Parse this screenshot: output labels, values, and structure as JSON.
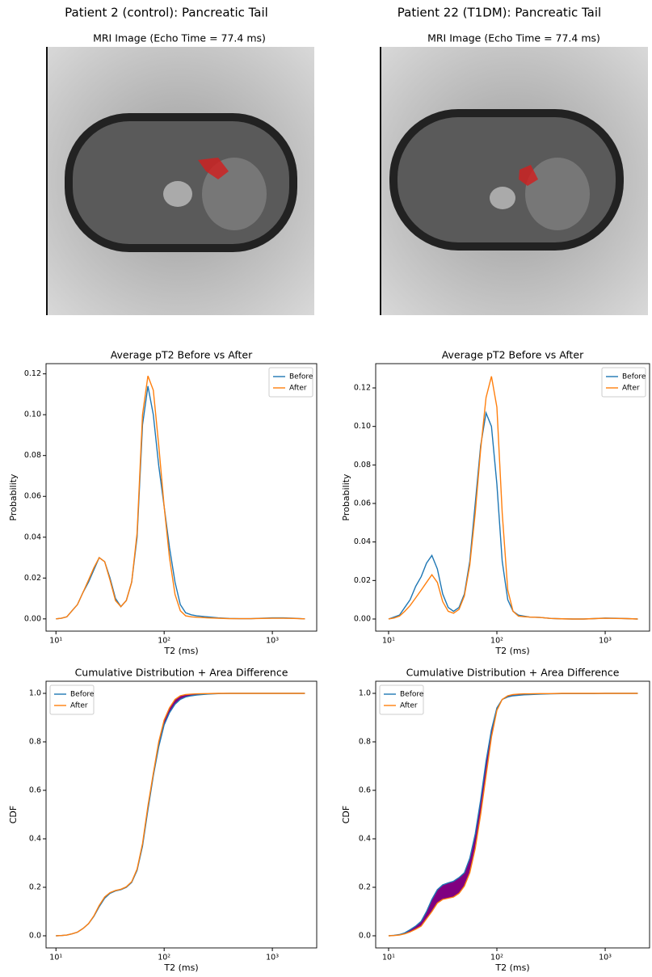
{
  "columns": [
    {
      "title": "Patient 2 (control): Pancreatic Tail",
      "image_title": "MRI Image (Echo Time = 77.4 ms)"
    },
    {
      "title": "Patient 22 (T1DM): Pancreatic Tail",
      "image_title": "MRI Image (Echo Time = 77.4 ms)"
    }
  ],
  "chart_data": [
    {
      "type": "line",
      "title": "Average pT2 Before vs After",
      "xlabel": "T2 (ms)",
      "ylabel": "Probability",
      "xscale": "log",
      "legend": "upper right",
      "x": [
        10,
        11.2,
        12.6,
        14.1,
        15.8,
        17.8,
        20,
        22.4,
        25.1,
        28.2,
        31.6,
        35.5,
        39.8,
        44.7,
        50.1,
        56.2,
        63.1,
        70.8,
        79.4,
        89.1,
        100,
        112,
        126,
        141,
        158,
        178,
        200,
        251,
        316,
        398,
        501,
        631,
        794,
        1000,
        1259,
        1585,
        2000
      ],
      "series": [
        {
          "name": "Before",
          "color": "#1f77b4",
          "values": [
            0,
            0.0003,
            0.001,
            0.004,
            0.007,
            0.013,
            0.018,
            0.024,
            0.03,
            0.028,
            0.02,
            0.01,
            0.006,
            0.009,
            0.018,
            0.04,
            0.095,
            0.114,
            0.1,
            0.075,
            0.055,
            0.035,
            0.018,
            0.007,
            0.003,
            0.002,
            0.0015,
            0.001,
            0.0005,
            0.0002,
            0.0001,
            0.0001,
            0.0003,
            0.0005,
            0.0005,
            0.0003,
            0
          ]
        },
        {
          "name": "After",
          "color": "#ff7f0e",
          "values": [
            0,
            0.0003,
            0.001,
            0.004,
            0.007,
            0.013,
            0.019,
            0.025,
            0.03,
            0.028,
            0.019,
            0.009,
            0.006,
            0.009,
            0.018,
            0.042,
            0.1,
            0.119,
            0.112,
            0.085,
            0.055,
            0.03,
            0.012,
            0.004,
            0.0015,
            0.001,
            0.0008,
            0.0005,
            0.0003,
            0.0001,
            0.0001,
            0.0001,
            0.0002,
            0.0003,
            0.0003,
            0.0002,
            0
          ]
        }
      ],
      "xlim": [
        8.1,
        2570
      ],
      "xticks": [
        {
          "value": 10,
          "label": "10¹"
        },
        {
          "value": 100,
          "label": "10²"
        },
        {
          "value": 1000,
          "label": "10³"
        }
      ],
      "ylim": [
        -0.006,
        0.125
      ],
      "yticks": [
        {
          "value": 0,
          "label": "0.00"
        },
        {
          "value": 0.02,
          "label": "0.02"
        },
        {
          "value": 0.04,
          "label": "0.04"
        },
        {
          "value": 0.06,
          "label": "0.06"
        },
        {
          "value": 0.08,
          "label": "0.08"
        },
        {
          "value": 0.1,
          "label": "0.10"
        },
        {
          "value": 0.12,
          "label": "0.12"
        }
      ]
    },
    {
      "type": "line",
      "title": "Average pT2 Before vs After",
      "xlabel": "T2 (ms)",
      "ylabel": "Probability",
      "xscale": "log",
      "legend": "upper right",
      "x": [
        10,
        11.2,
        12.6,
        14.1,
        15.8,
        17.8,
        20,
        22.4,
        25.1,
        28.2,
        31.6,
        35.5,
        39.8,
        44.7,
        50.1,
        56.2,
        63.1,
        70.8,
        79.4,
        89.1,
        100,
        112,
        126,
        141,
        158,
        178,
        200,
        251,
        316,
        398,
        501,
        631,
        794,
        1000,
        1259,
        1585,
        2000
      ],
      "series": [
        {
          "name": "Before",
          "color": "#1f77b4",
          "values": [
            0,
            0.001,
            0.002,
            0.006,
            0.01,
            0.017,
            0.022,
            0.029,
            0.033,
            0.026,
            0.013,
            0.006,
            0.004,
            0.006,
            0.013,
            0.03,
            0.06,
            0.09,
            0.107,
            0.1,
            0.07,
            0.03,
            0.01,
            0.004,
            0.002,
            0.0015,
            0.001,
            0.0008,
            0.0003,
            0.0001,
            0,
            0,
            0.0002,
            0.0005,
            0.0004,
            0.0002,
            0
          ]
        },
        {
          "name": "After",
          "color": "#ff7f0e",
          "values": [
            0,
            0.0005,
            0.0015,
            0.004,
            0.007,
            0.011,
            0.015,
            0.019,
            0.023,
            0.019,
            0.009,
            0.004,
            0.003,
            0.005,
            0.012,
            0.028,
            0.055,
            0.088,
            0.115,
            0.126,
            0.11,
            0.055,
            0.015,
            0.004,
            0.0015,
            0.0012,
            0.001,
            0.0008,
            0.0003,
            0.0001,
            0,
            0,
            0.0002,
            0.0004,
            0.0003,
            0.0002,
            0
          ]
        }
      ],
      "xlim": [
        7.6,
        2570
      ],
      "xticks": [
        {
          "value": 10,
          "label": "10¹"
        },
        {
          "value": 100,
          "label": "10²"
        },
        {
          "value": 1000,
          "label": "10³"
        }
      ],
      "ylim": [
        -0.0063,
        0.1326
      ],
      "yticks": [
        {
          "value": 0,
          "label": "0.00"
        },
        {
          "value": 0.02,
          "label": "0.02"
        },
        {
          "value": 0.04,
          "label": "0.04"
        },
        {
          "value": 0.06,
          "label": "0.06"
        },
        {
          "value": 0.08,
          "label": "0.08"
        },
        {
          "value": 0.1,
          "label": "0.10"
        },
        {
          "value": 0.12,
          "label": "0.12"
        }
      ]
    },
    {
      "type": "cdf",
      "title": "Cumulative Distribution + Area Difference",
      "xlabel": "T2 (ms)",
      "ylabel": "CDF",
      "xscale": "log",
      "legend": "upper left",
      "fill_color": "#800080",
      "x": [
        10,
        11.2,
        12.6,
        14.1,
        15.8,
        17.8,
        20,
        22.4,
        25.1,
        28.2,
        31.6,
        35.5,
        39.8,
        44.7,
        50.1,
        56.2,
        63.1,
        70.8,
        79.4,
        89.1,
        100,
        112,
        126,
        141,
        158,
        178,
        200,
        251,
        316,
        398,
        501,
        631,
        794,
        1000,
        1259,
        1585,
        2000
      ],
      "series": [
        {
          "name": "Before",
          "color": "#1f77b4",
          "values": [
            0,
            0.001,
            0.003,
            0.008,
            0.015,
            0.03,
            0.05,
            0.08,
            0.12,
            0.155,
            0.175,
            0.185,
            0.19,
            0.2,
            0.22,
            0.27,
            0.37,
            0.52,
            0.66,
            0.78,
            0.87,
            0.92,
            0.955,
            0.975,
            0.985,
            0.99,
            0.993,
            0.997,
            0.999,
            1,
            1,
            1,
            1,
            1,
            1,
            1,
            1
          ]
        },
        {
          "name": "After",
          "color": "#ff7f0e",
          "values": [
            0,
            0.001,
            0.003,
            0.008,
            0.015,
            0.03,
            0.05,
            0.082,
            0.125,
            0.16,
            0.178,
            0.187,
            0.192,
            0.202,
            0.223,
            0.275,
            0.38,
            0.535,
            0.67,
            0.8,
            0.89,
            0.94,
            0.975,
            0.99,
            0.995,
            0.997,
            0.998,
            0.999,
            1,
            1,
            1,
            1,
            1,
            1,
            1,
            1,
            1
          ]
        }
      ],
      "xlim": [
        8.1,
        2570
      ],
      "xticks": [
        {
          "value": 10,
          "label": "10¹"
        },
        {
          "value": 100,
          "label": "10²"
        },
        {
          "value": 1000,
          "label": "10³"
        }
      ],
      "ylim": [
        -0.05,
        1.05
      ],
      "yticks": [
        {
          "value": 0,
          "label": "0.0"
        },
        {
          "value": 0.2,
          "label": "0.2"
        },
        {
          "value": 0.4,
          "label": "0.4"
        },
        {
          "value": 0.6,
          "label": "0.6"
        },
        {
          "value": 0.8,
          "label": "0.8"
        },
        {
          "value": 1,
          "label": "1.0"
        }
      ]
    },
    {
      "type": "cdf",
      "title": "Cumulative Distribution + Area Difference",
      "xlabel": "T2 (ms)",
      "ylabel": "CDF",
      "xscale": "log",
      "legend": "upper left",
      "fill_color": "#800080",
      "x": [
        10,
        11.2,
        12.6,
        14.1,
        15.8,
        17.8,
        20,
        22.4,
        25.1,
        28.2,
        31.6,
        35.5,
        39.8,
        44.7,
        50.1,
        56.2,
        63.1,
        70.8,
        79.4,
        89.1,
        100,
        112,
        126,
        141,
        158,
        178,
        200,
        251,
        316,
        398,
        501,
        631,
        794,
        1000,
        1259,
        1585,
        2000
      ],
      "series": [
        {
          "name": "Before",
          "color": "#1f77b4",
          "values": [
            0,
            0.002,
            0.005,
            0.012,
            0.025,
            0.04,
            0.06,
            0.1,
            0.15,
            0.19,
            0.21,
            0.218,
            0.225,
            0.24,
            0.26,
            0.32,
            0.42,
            0.56,
            0.72,
            0.85,
            0.94,
            0.975,
            0.985,
            0.99,
            0.992,
            0.994,
            0.995,
            0.997,
            0.998,
            0.999,
            0.999,
            0.999,
            0.999,
            1,
            1,
            1,
            1
          ]
        },
        {
          "name": "After",
          "color": "#ff7f0e",
          "values": [
            0,
            0.001,
            0.003,
            0.008,
            0.016,
            0.027,
            0.04,
            0.07,
            0.1,
            0.135,
            0.15,
            0.155,
            0.16,
            0.175,
            0.205,
            0.26,
            0.36,
            0.5,
            0.66,
            0.82,
            0.93,
            0.975,
            0.99,
            0.995,
            0.997,
            0.998,
            0.998,
            0.999,
            0.999,
            1,
            1,
            1,
            1,
            1,
            1,
            1,
            1
          ]
        }
      ],
      "xlim": [
        7.6,
        2570
      ],
      "xticks": [
        {
          "value": 10,
          "label": "10¹"
        },
        {
          "value": 100,
          "label": "10²"
        },
        {
          "value": 1000,
          "label": "10³"
        }
      ],
      "ylim": [
        -0.05,
        1.05
      ],
      "yticks": [
        {
          "value": 0,
          "label": "0.0"
        },
        {
          "value": 0.2,
          "label": "0.2"
        },
        {
          "value": 0.4,
          "label": "0.4"
        },
        {
          "value": 0.6,
          "label": "0.6"
        },
        {
          "value": 0.8,
          "label": "0.8"
        },
        {
          "value": 1,
          "label": "1.0"
        }
      ]
    }
  ]
}
